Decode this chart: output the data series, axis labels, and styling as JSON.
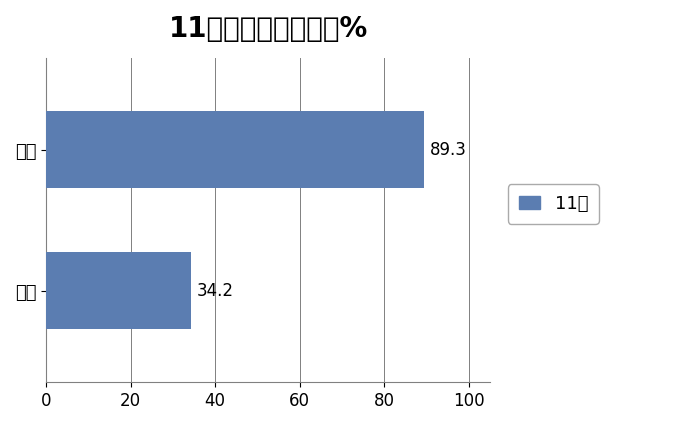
{
  "title": "11月换电重卡同环比%",
  "categories": [
    "环比",
    "同比"
  ],
  "values": [
    34.2,
    89.3
  ],
  "bar_color": "#5B7DB1",
  "xlim": [
    0,
    105
  ],
  "xticks": [
    0,
    20,
    40,
    60,
    80,
    100
  ],
  "legend_label": "11月",
  "title_fontsize": 20,
  "label_fontsize": 13,
  "tick_fontsize": 12,
  "annotation_fontsize": 12,
  "background_color": "#FFFFFF",
  "bar_height": 0.55,
  "figsize": [
    7.0,
    4.25
  ],
  "dpi": 100
}
